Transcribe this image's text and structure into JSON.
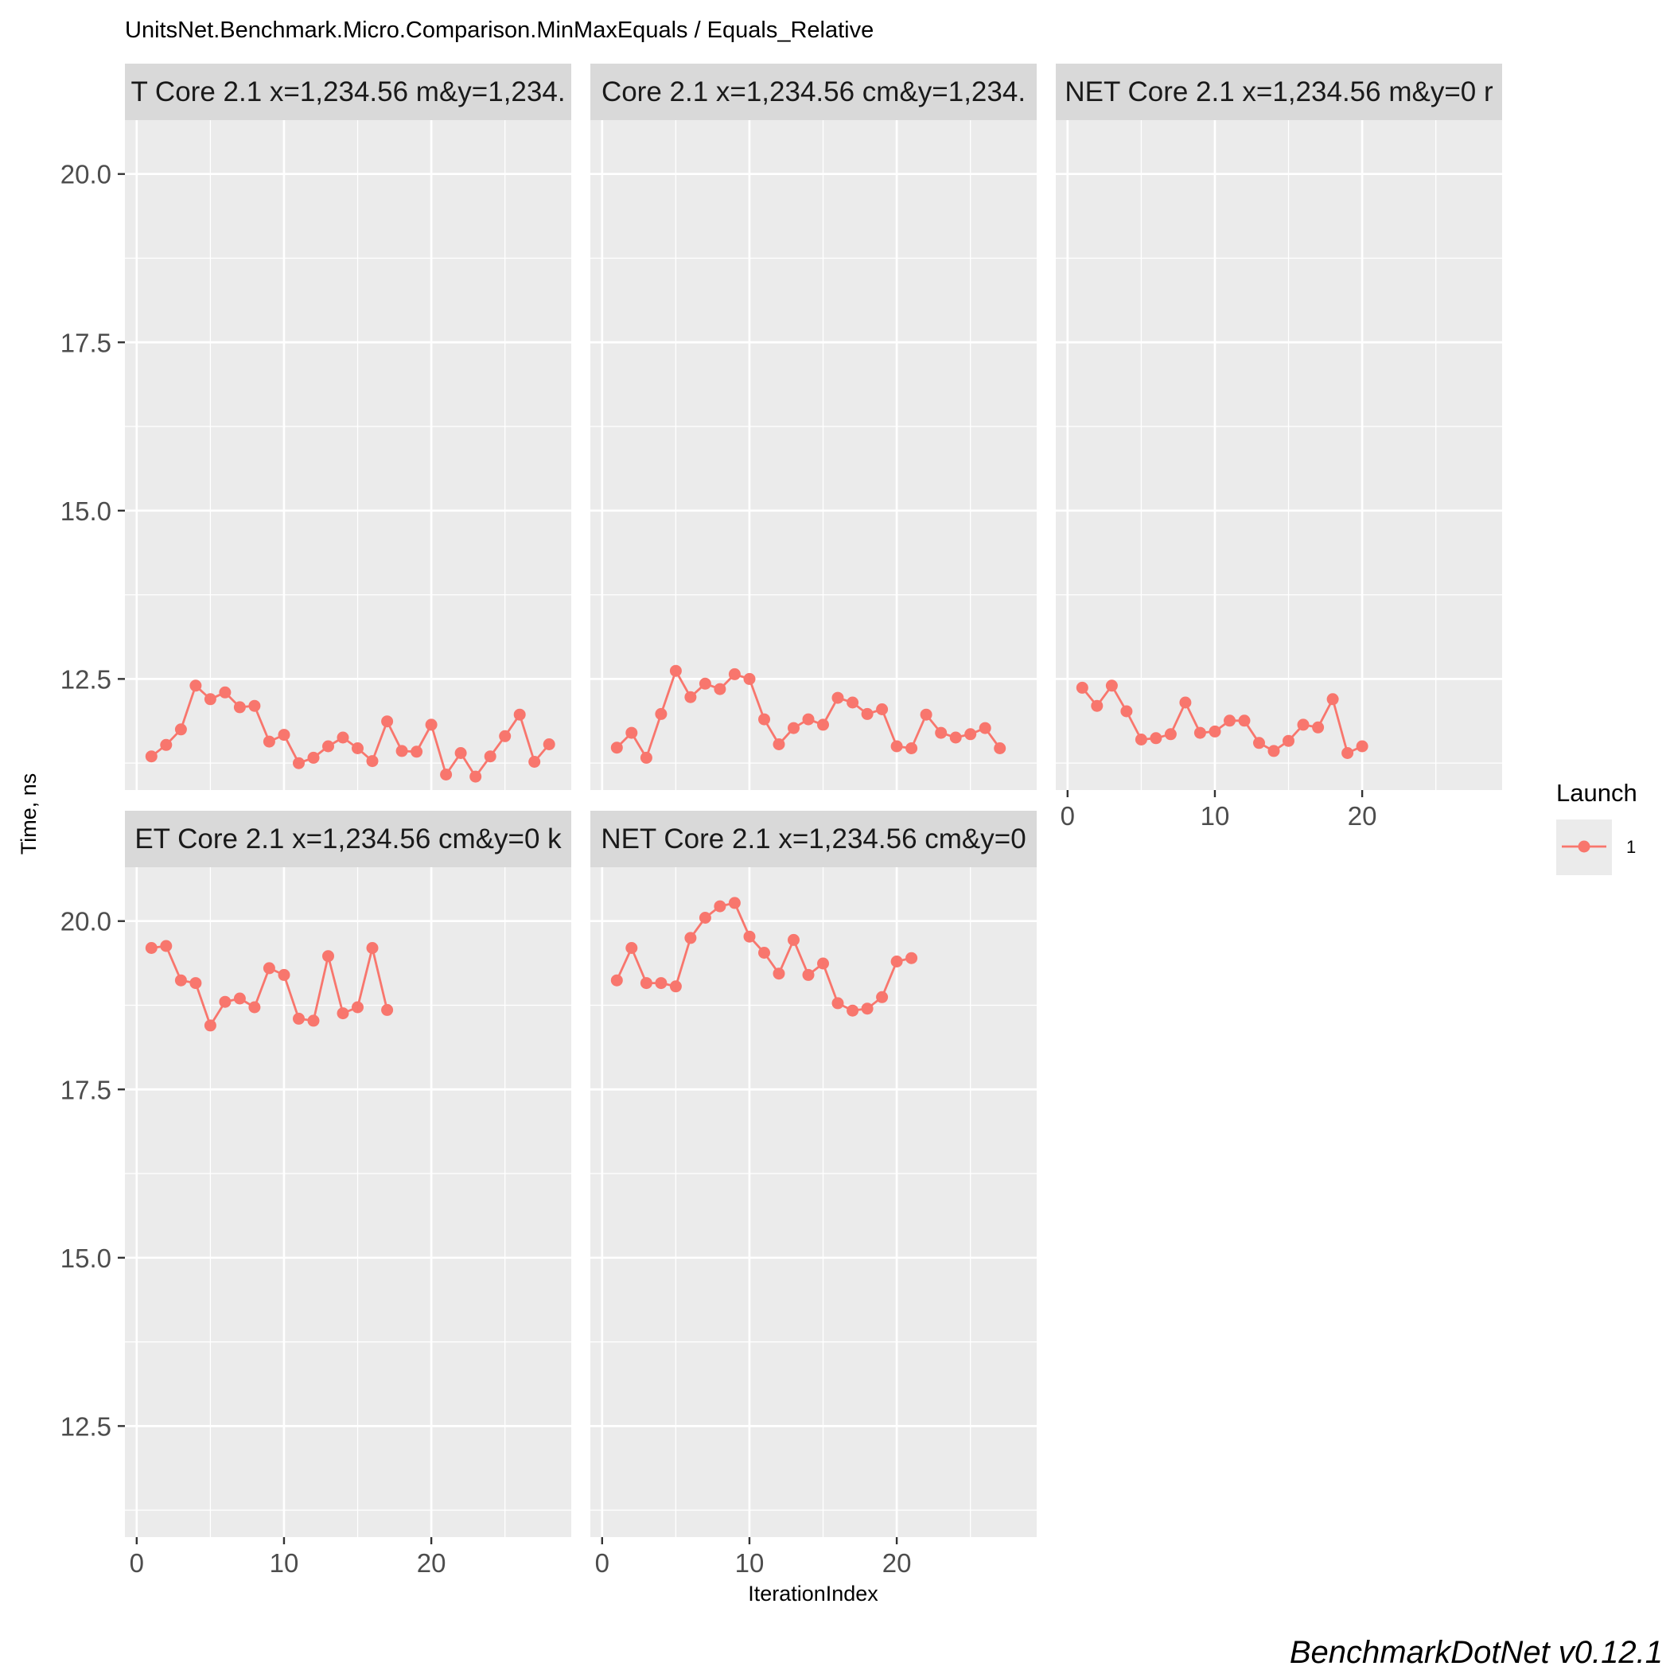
{
  "chart_data": {
    "type": "line",
    "title": "UnitsNet.Benchmark.Micro.Comparison.MinMaxEquals / Equals_Relative",
    "xlabel": "IterationIndex",
    "ylabel": "Time, ns",
    "caption": "BenchmarkDotNet v0.12.1",
    "xlim": [
      -0.8,
      29.5
    ],
    "x_ticks": [
      0,
      10,
      20
    ],
    "ylim": [
      10.85,
      20.8
    ],
    "y_ticks": [
      "12.5",
      "15.0",
      "17.5",
      "20.0"
    ],
    "grid": true,
    "legend": {
      "title": "Launch",
      "placement": "right",
      "items": [
        "1"
      ]
    },
    "series_color": "#F8766D",
    "panels": [
      {
        "strip": "T Core 2.1 x=1,234.56 m&y=1,234.",
        "x": [
          1,
          2,
          3,
          4,
          5,
          6,
          7,
          8,
          9,
          10,
          11,
          12,
          13,
          14,
          15,
          16,
          17,
          18,
          19,
          20,
          21,
          22,
          23,
          24,
          25,
          26,
          27,
          28
        ],
        "values": [
          11.35,
          11.52,
          11.75,
          12.4,
          12.2,
          12.3,
          12.08,
          12.1,
          11.57,
          11.67,
          11.25,
          11.33,
          11.5,
          11.63,
          11.47,
          11.28,
          11.87,
          11.43,
          11.42,
          11.82,
          11.08,
          11.4,
          11.05,
          11.35,
          11.65,
          11.97,
          11.27,
          11.53
        ]
      },
      {
        "strip": "Core 2.1 x=1,234.56 cm&y=1,234.",
        "x": [
          1,
          2,
          3,
          4,
          5,
          6,
          7,
          8,
          9,
          10,
          11,
          12,
          13,
          14,
          15,
          16,
          17,
          18,
          19,
          20,
          21,
          22,
          23,
          24,
          25,
          26,
          27
        ],
        "values": [
          11.48,
          11.7,
          11.33,
          11.98,
          12.62,
          12.23,
          12.43,
          12.35,
          12.57,
          12.5,
          11.9,
          11.53,
          11.77,
          11.9,
          11.82,
          12.22,
          12.15,
          11.98,
          12.05,
          11.5,
          11.47,
          11.97,
          11.7,
          11.63,
          11.68,
          11.77,
          11.47
        ]
      },
      {
        "strip": "NET Core 2.1 x=1,234.56 m&y=0 r",
        "x": [
          1,
          2,
          3,
          4,
          5,
          6,
          7,
          8,
          9,
          10,
          11,
          12,
          13,
          14,
          15,
          16,
          17,
          18,
          19,
          20
        ],
        "values": [
          12.37,
          12.1,
          12.4,
          12.02,
          11.6,
          11.62,
          11.68,
          12.15,
          11.7,
          11.72,
          11.88,
          11.88,
          11.55,
          11.43,
          11.58,
          11.82,
          11.78,
          12.2,
          11.4,
          11.5
        ]
      },
      {
        "strip": "ET Core 2.1 x=1,234.56 cm&y=0 k",
        "x": [
          1,
          2,
          3,
          4,
          5,
          6,
          7,
          8,
          9,
          10,
          11,
          12,
          13,
          14,
          15,
          16,
          17
        ],
        "values": [
          19.6,
          19.63,
          19.12,
          19.08,
          18.45,
          18.8,
          18.85,
          18.72,
          19.3,
          19.2,
          18.55,
          18.52,
          19.48,
          18.63,
          18.72,
          19.6,
          18.68
        ]
      },
      {
        "strip": "NET Core 2.1 x=1,234.56 cm&y=0",
        "x": [
          1,
          2,
          3,
          4,
          5,
          6,
          7,
          8,
          9,
          10,
          11,
          12,
          13,
          14,
          15,
          16,
          17,
          18,
          19,
          20,
          21
        ],
        "values": [
          19.12,
          19.6,
          19.08,
          19.08,
          19.03,
          19.75,
          20.05,
          20.22,
          20.27,
          19.77,
          19.53,
          19.22,
          19.72,
          19.2,
          19.37,
          18.78,
          18.67,
          18.7,
          18.87,
          19.4,
          19.45
        ]
      }
    ]
  }
}
